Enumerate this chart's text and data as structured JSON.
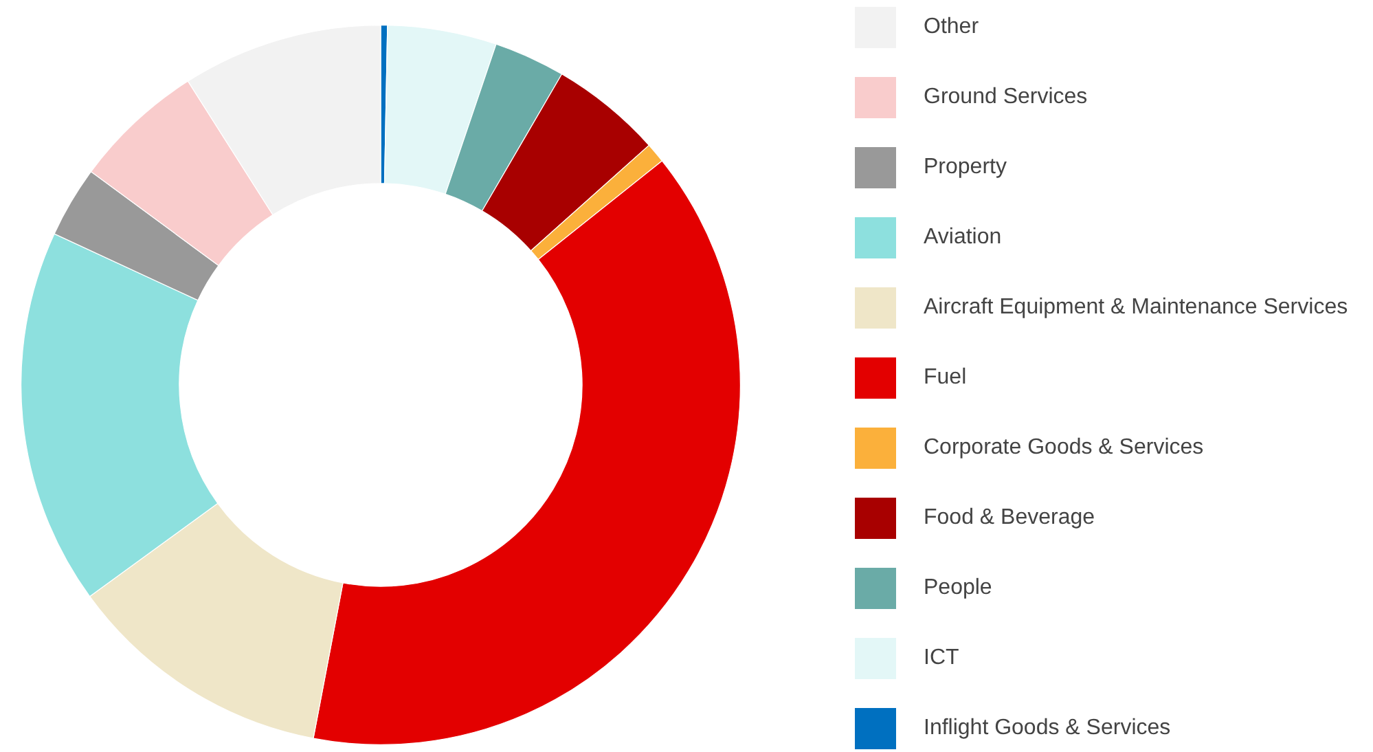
{
  "chart_data": {
    "type": "donut",
    "categories": [
      "Other",
      "Ground Services",
      "Property",
      "Aviation",
      "Aircraft Equipment & Maintenance Services",
      "Fuel",
      "Corporate Goods & Services",
      "Food & Beverage",
      "People",
      "ICT",
      "Inflight Goods & Services"
    ],
    "values": [
      9.0,
      5.9,
      3.2,
      16.9,
      12.0,
      38.7,
      0.9,
      5.0,
      3.2,
      4.9,
      0.3
    ],
    "colors": [
      "#f2f2f2",
      "#f9cccc",
      "#999999",
      "#8de0de",
      "#efe6c8",
      "#e30000",
      "#fbb03b",
      "#a80000",
      "#6aaba7",
      "#e3f7f7",
      "#0070c0"
    ],
    "legend": "right"
  }
}
